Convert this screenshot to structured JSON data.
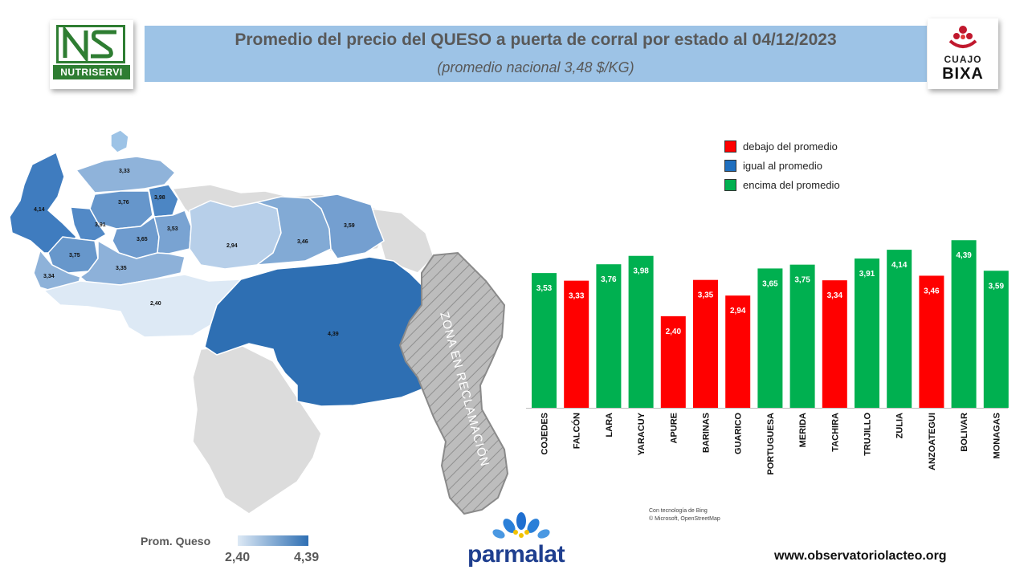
{
  "header": {
    "title": "Promedio del precio del QUESO a puerta de corral por estado al 04/12/2023",
    "subtitle": "(promedio nacional 3,48 $/KG)"
  },
  "logos": {
    "left_text": "NUTRISERVI",
    "right_top": "CUAJO",
    "right_bottom": "BIXA"
  },
  "legend": {
    "items": [
      {
        "label": "debajo del promedio",
        "color": "#ff0000"
      },
      {
        "label": "igual al promedio",
        "color": "#1f6fbf"
      },
      {
        "label": "encima del promedio",
        "color": "#00b050"
      }
    ]
  },
  "map": {
    "reclamation_label": "ZONA EN RECLAMACIÓN",
    "gradient_title": "Prom. Queso",
    "gradient_min": "2,40",
    "gradient_max": "4,39",
    "credit_line1": "Con tecnología de Bing",
    "credit_line2": "© Microsoft, OpenStreetMap",
    "regions": [
      {
        "label": "3,33",
        "value": 3.33,
        "color": "#8fb3da"
      },
      {
        "label": "4,14",
        "value": 4.14,
        "color": "#3f7cbf"
      },
      {
        "label": "3,76",
        "value": 3.76,
        "color": "#6696cb"
      },
      {
        "label": "3,98",
        "value": 3.98,
        "color": "#4c86c4"
      },
      {
        "label": "3,91",
        "value": 3.91,
        "color": "#5289c6"
      },
      {
        "label": "3,65",
        "value": 3.65,
        "color": "#6e9bce"
      },
      {
        "label": "3,53",
        "value": 3.53,
        "color": "#79a3d2"
      },
      {
        "label": "3,75",
        "value": 3.75,
        "color": "#6797cb"
      },
      {
        "label": "3,35",
        "value": 3.35,
        "color": "#8db1d9"
      },
      {
        "label": "3,34",
        "value": 3.34,
        "color": "#8eb2d9"
      },
      {
        "label": "2,94",
        "value": 2.94,
        "color": "#b7cfe9"
      },
      {
        "label": "3,46",
        "value": 3.46,
        "color": "#82aad5"
      },
      {
        "label": "3,59",
        "value": 3.59,
        "color": "#749fd0"
      },
      {
        "label": "2,40",
        "value": 2.4,
        "color": "#dde9f5"
      },
      {
        "label": "4,39",
        "value": 4.39,
        "color": "#2e6fb3"
      }
    ]
  },
  "chart_data": {
    "type": "bar",
    "categories": [
      "COJEDES",
      "FALCÓN",
      "LARA",
      "YARACUY",
      "APURE",
      "BARINAS",
      "GUARICO",
      "PORTUGUESA",
      "MERIDA",
      "TACHIRA",
      "TRUJILLO",
      "ZULIA",
      "ANZOATEGUI",
      "BOLIVAR",
      "MONAGAS"
    ],
    "values": [
      3.53,
      3.33,
      3.76,
      3.98,
      2.4,
      3.35,
      2.94,
      3.65,
      3.75,
      3.34,
      3.91,
      4.14,
      3.46,
      4.39,
      3.59
    ],
    "value_labels": [
      "3,53",
      "3,33",
      "3,76",
      "3,98",
      "2,40",
      "3,35",
      "2,94",
      "3,65",
      "3,75",
      "3,34",
      "3,91",
      "4,14",
      "3,46",
      "4,39",
      "3,59"
    ],
    "colors": [
      "#00b050",
      "#ff0000",
      "#00b050",
      "#00b050",
      "#ff0000",
      "#ff0000",
      "#ff0000",
      "#00b050",
      "#00b050",
      "#ff0000",
      "#00b050",
      "#00b050",
      "#ff0000",
      "#00b050",
      "#00b050"
    ],
    "ylim": [
      0,
      4.5
    ],
    "title": "",
    "xlabel": "",
    "ylabel": "",
    "legend_position": "top-right"
  },
  "footer": {
    "brand": "parmalat",
    "website": "www.observatoriolacteo.org"
  }
}
